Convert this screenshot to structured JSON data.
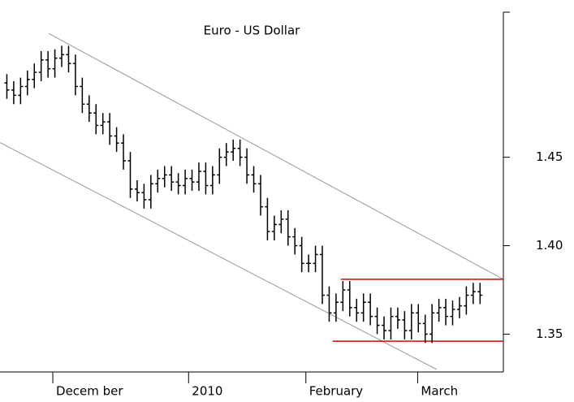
{
  "chart_data": {
    "type": "ohlc",
    "title": "Euro - US Dollar",
    "x": [
      0,
      1,
      2,
      3,
      4,
      5,
      6,
      7,
      8,
      9,
      10,
      11,
      12,
      13,
      14,
      15,
      16,
      17,
      18,
      19,
      20,
      21,
      22,
      23,
      24,
      25,
      26,
      27,
      28,
      29,
      30,
      31,
      32,
      33,
      34,
      35,
      36,
      37,
      38,
      39,
      40,
      41,
      42,
      43,
      44,
      45,
      46,
      47,
      48,
      49,
      50,
      51,
      52,
      53,
      54,
      55,
      56,
      57,
      58,
      59,
      60,
      61,
      62,
      63,
      64,
      65,
      66,
      67,
      68,
      69
    ],
    "open": [
      1.492,
      1.488,
      1.485,
      1.49,
      1.494,
      1.498,
      1.505,
      1.5,
      1.506,
      1.508,
      1.503,
      1.49,
      1.48,
      1.475,
      1.468,
      1.47,
      1.462,
      1.458,
      1.448,
      1.432,
      1.43,
      1.426,
      1.435,
      1.438,
      1.44,
      1.436,
      1.434,
      1.438,
      1.436,
      1.442,
      1.434,
      1.44,
      1.45,
      1.453,
      1.455,
      1.45,
      1.44,
      1.435,
      1.422,
      1.408,
      1.412,
      1.415,
      1.405,
      1.4,
      1.39,
      1.39,
      1.395,
      1.372,
      1.362,
      1.368,
      1.375,
      1.365,
      1.362,
      1.368,
      1.36,
      1.355,
      1.352,
      1.36,
      1.358,
      1.352,
      1.362,
      1.356,
      1.35,
      1.362,
      1.365,
      1.36,
      1.364,
      1.366,
      1.372,
      1.374
    ],
    "high": [
      1.497,
      1.493,
      1.495,
      1.499,
      1.503,
      1.51,
      1.51,
      1.511,
      1.513,
      1.513,
      1.508,
      1.495,
      1.485,
      1.48,
      1.475,
      1.475,
      1.467,
      1.463,
      1.453,
      1.437,
      1.435,
      1.44,
      1.443,
      1.445,
      1.445,
      1.441,
      1.443,
      1.443,
      1.447,
      1.447,
      1.445,
      1.455,
      1.458,
      1.46,
      1.46,
      1.455,
      1.445,
      1.44,
      1.427,
      1.417,
      1.42,
      1.42,
      1.41,
      1.405,
      1.395,
      1.4,
      1.4,
      1.377,
      1.373,
      1.38,
      1.38,
      1.37,
      1.373,
      1.373,
      1.365,
      1.36,
      1.365,
      1.365,
      1.363,
      1.367,
      1.367,
      1.361,
      1.367,
      1.37,
      1.37,
      1.369,
      1.371,
      1.377,
      1.379,
      1.379
    ],
    "low": [
      1.483,
      1.48,
      1.48,
      1.485,
      1.489,
      1.493,
      1.495,
      1.495,
      1.501,
      1.498,
      1.485,
      1.475,
      1.47,
      1.463,
      1.463,
      1.457,
      1.453,
      1.443,
      1.427,
      1.425,
      1.421,
      1.421,
      1.43,
      1.433,
      1.431,
      1.429,
      1.429,
      1.431,
      1.431,
      1.429,
      1.429,
      1.435,
      1.445,
      1.448,
      1.445,
      1.435,
      1.43,
      1.417,
      1.403,
      1.403,
      1.407,
      1.4,
      1.395,
      1.385,
      1.385,
      1.385,
      1.367,
      1.357,
      1.357,
      1.363,
      1.36,
      1.357,
      1.357,
      1.355,
      1.35,
      1.347,
      1.347,
      1.353,
      1.347,
      1.347,
      1.351,
      1.345,
      1.345,
      1.357,
      1.355,
      1.355,
      1.359,
      1.361,
      1.367,
      1.367
    ],
    "close": [
      1.488,
      1.485,
      1.49,
      1.494,
      1.498,
      1.505,
      1.5,
      1.506,
      1.508,
      1.503,
      1.49,
      1.48,
      1.475,
      1.468,
      1.47,
      1.462,
      1.458,
      1.448,
      1.432,
      1.43,
      1.426,
      1.435,
      1.438,
      1.44,
      1.436,
      1.434,
      1.438,
      1.436,
      1.442,
      1.434,
      1.44,
      1.45,
      1.453,
      1.455,
      1.45,
      1.44,
      1.435,
      1.422,
      1.408,
      1.412,
      1.415,
      1.405,
      1.4,
      1.39,
      1.39,
      1.395,
      1.372,
      1.362,
      1.368,
      1.375,
      1.365,
      1.362,
      1.368,
      1.36,
      1.355,
      1.352,
      1.36,
      1.358,
      1.352,
      1.362,
      1.356,
      1.35,
      1.362,
      1.365,
      1.36,
      1.364,
      1.366,
      1.372,
      1.374,
      1.372
    ],
    "color": "#000000",
    "lines": [
      {
        "x": [
          6.1,
          72.4
        ],
        "y": [
          1.52,
          1.381
        ],
        "color": "#999999"
      },
      {
        "x": [
          -1,
          62.7
        ],
        "y": [
          1.4583,
          1.33
        ],
        "color": "#999999"
      },
      {
        "x": [
          48.7,
          72.4
        ],
        "y": [
          1.381,
          1.381
        ],
        "color": "#e00000"
      },
      {
        "x": [
          47.5,
          72.4
        ],
        "y": [
          1.346,
          1.346
        ],
        "color": "#e00000"
      }
    ],
    "xlim": [
      -1,
      72.4
    ],
    "ylim": [
      1.33,
      1.532
    ],
    "xticks": [
      {
        "value": -4.5,
        "label": "ber"
      },
      {
        "value": 6.7,
        "label": "Decem ber"
      },
      {
        "value": 26.5,
        "label": "2010"
      },
      {
        "value": 43.6,
        "label": "February"
      },
      {
        "value": 59.9,
        "label": "March"
      }
    ],
    "yticks": [
      1.45,
      {
        "value": 1.4,
        "label": "1.40"
      },
      1.35
    ],
    "y_axis_side": "right"
  }
}
